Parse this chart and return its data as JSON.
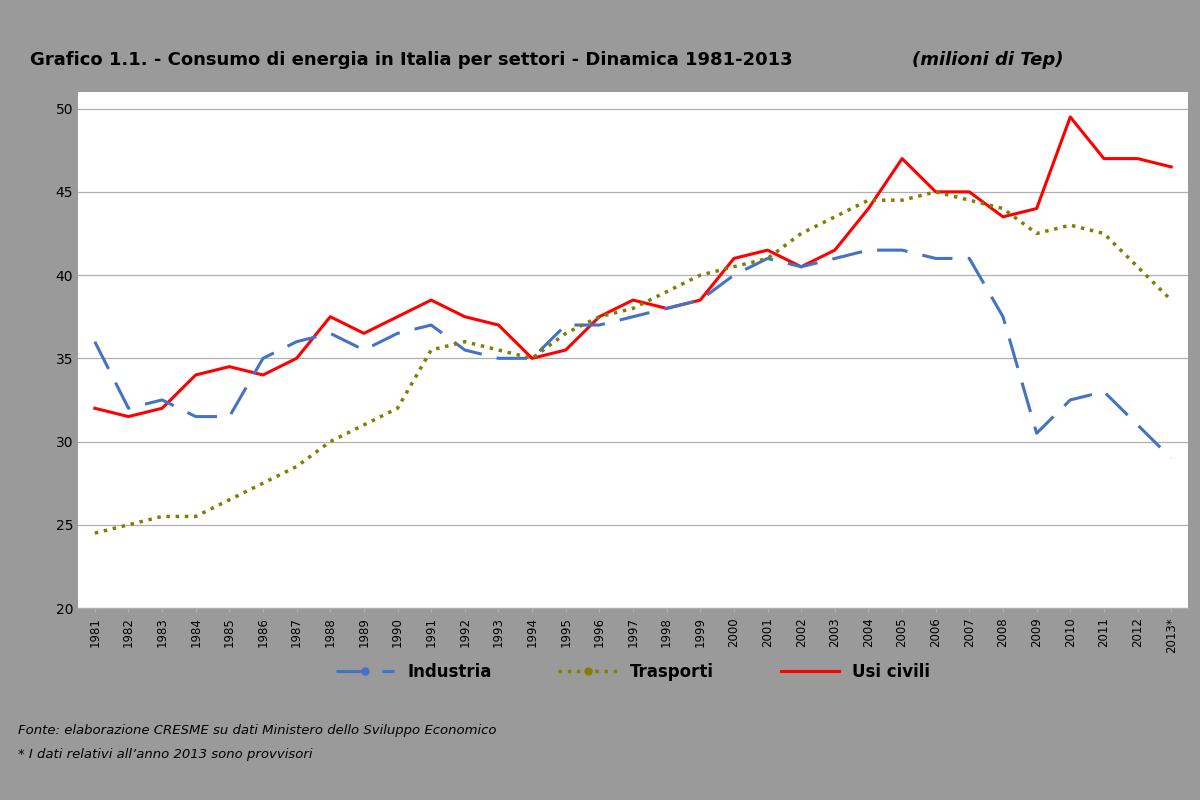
{
  "title_plain": "Grafico 1.1. - Consumo di energia in Italia per settori - Dinamica 1981-2013 ",
  "title_italic": "(milioni di Tep)",
  "year_labels": [
    "1981",
    "1982",
    "1983",
    "1984",
    "1985",
    "1986",
    "1987",
    "1988",
    "1989",
    "1990",
    "1991",
    "1992",
    "1993",
    "1994",
    "1995",
    "1996",
    "1997",
    "1998",
    "1999",
    "2000",
    "2001",
    "2002",
    "2003",
    "2004",
    "2005",
    "2006",
    "2007",
    "2008",
    "2009",
    "2010",
    "2011",
    "2012",
    "2013*"
  ],
  "industria": [
    36.0,
    32.0,
    32.5,
    31.5,
    31.5,
    35.0,
    36.0,
    36.5,
    35.5,
    36.5,
    37.0,
    35.5,
    35.0,
    35.0,
    37.0,
    37.0,
    37.5,
    38.0,
    38.5,
    40.0,
    41.0,
    40.5,
    41.0,
    41.5,
    41.5,
    41.0,
    41.0,
    37.5,
    30.5,
    32.5,
    33.0,
    31.0,
    29.0
  ],
  "trasporti": [
    24.5,
    25.0,
    25.5,
    25.5,
    26.5,
    27.5,
    28.5,
    30.0,
    31.0,
    32.0,
    35.5,
    36.0,
    35.5,
    35.0,
    36.5,
    37.5,
    38.0,
    39.0,
    40.0,
    40.5,
    41.0,
    42.5,
    43.5,
    44.5,
    44.5,
    45.0,
    44.5,
    44.0,
    42.5,
    43.0,
    42.5,
    40.5,
    38.5
  ],
  "usi_civili": [
    32.0,
    31.5,
    32.0,
    34.0,
    34.5,
    34.0,
    35.0,
    37.5,
    36.5,
    37.5,
    38.5,
    37.5,
    37.0,
    35.0,
    35.5,
    37.5,
    38.5,
    38.0,
    38.5,
    41.0,
    41.5,
    40.5,
    41.5,
    44.0,
    47.0,
    45.0,
    45.0,
    43.5,
    44.0,
    49.5,
    47.0,
    47.0,
    46.5
  ],
  "industria_color": "#4472C4",
  "trasporti_color": "#808000",
  "usi_civili_color": "#FF0000",
  "ylim": [
    20,
    51
  ],
  "yticks": [
    20,
    25,
    30,
    35,
    40,
    45,
    50
  ],
  "source_line1": "Fonte: elaborazione CRESME su dati Ministero dello Sviluppo Economico",
  "source_line2": "* I dati relativi all’anno 2013 sono provvisori",
  "bg_color": "#ffffff",
  "outer_bg": "#9a9a9a",
  "chart_border_color": "#aaaaaa"
}
